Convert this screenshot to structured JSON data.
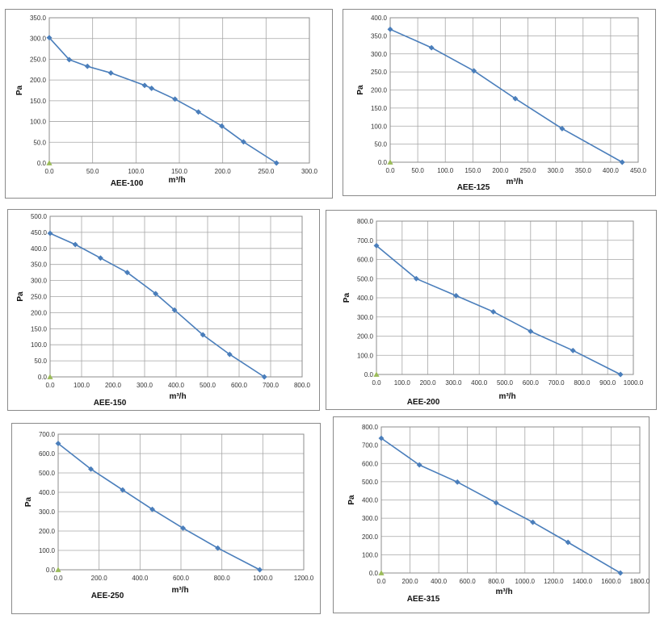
{
  "colors": {
    "series": "#4a7ebb",
    "origin_marker": "#9bbb59",
    "grid": "#a6a6a6",
    "plot_border": "#8c8c8c"
  },
  "chart_data": [
    {
      "type": "line",
      "model": "AEE-100",
      "xlabel": "m³/h",
      "ylabel": "Pa",
      "xlim": [
        0,
        300
      ],
      "ylim": [
        0,
        350
      ],
      "xstep": 50,
      "ystep": 50,
      "xticks": [
        "0.0",
        "50.0",
        "100.0",
        "150.0",
        "200.0",
        "250.0",
        "300.0"
      ],
      "yticks": [
        "0.0",
        "50.0",
        "100.0",
        "150.0",
        "200.0",
        "250.0",
        "300.0",
        "350.0"
      ],
      "grid": true,
      "x": [
        0,
        23,
        44,
        71,
        110,
        118,
        145,
        172,
        199,
        224,
        262
      ],
      "y": [
        302,
        249,
        233,
        217,
        187,
        180,
        154,
        123,
        89,
        51,
        0
      ],
      "marker_x": 0,
      "marker_y": 0
    },
    {
      "type": "line",
      "model": "AEE-125",
      "xlabel": "m³/h",
      "ylabel": "Pa",
      "xlim": [
        0,
        450
      ],
      "ylim": [
        0,
        400
      ],
      "xstep": 50,
      "ystep": 50,
      "xticks": [
        "0.0",
        "50.0",
        "100.0",
        "150.0",
        "200.0",
        "250.0",
        "300.0",
        "350.0",
        "400.0",
        "450.0"
      ],
      "yticks": [
        "0.0",
        "50.0",
        "100.0",
        "150.0",
        "200.0",
        "250.0",
        "300.0",
        "350.0",
        "400.0"
      ],
      "grid": true,
      "x": [
        0,
        75,
        152,
        227,
        312,
        421
      ],
      "y": [
        368,
        317,
        253,
        176,
        93,
        0
      ],
      "marker_x": 0,
      "marker_y": 0
    },
    {
      "type": "line",
      "model": "AEE-150",
      "xlabel": "m³/h",
      "ylabel": "Pa",
      "xlim": [
        0,
        800
      ],
      "ylim": [
        0,
        500
      ],
      "xstep": 100,
      "ystep": 50,
      "xticks": [
        "0.0",
        "100.0",
        "200.0",
        "300.0",
        "400.0",
        "500.0",
        "600.0",
        "700.0",
        "800.0"
      ],
      "yticks": [
        "0.0",
        "50.0",
        "100.0",
        "150.0",
        "200.0",
        "250.0",
        "300.0",
        "350.0",
        "400.0",
        "450.0",
        "500.0"
      ],
      "grid": true,
      "x": [
        0,
        80,
        160,
        245,
        335,
        395,
        485,
        570,
        680
      ],
      "y": [
        447,
        412,
        370,
        325,
        259,
        208,
        131,
        70,
        0
      ],
      "marker_x": 0,
      "marker_y": 0
    },
    {
      "type": "line",
      "model": "AEE-200",
      "xlabel": "m³/h",
      "ylabel": "Pa",
      "xlim": [
        0,
        1000
      ],
      "ylim": [
        0,
        800
      ],
      "xstep": 100,
      "ystep": 100,
      "xticks": [
        "0.0",
        "100.0",
        "200.0",
        "300.0",
        "400.0",
        "500.0",
        "600.0",
        "700.0",
        "800.0",
        "900.0",
        "1000.0"
      ],
      "yticks": [
        "0.0",
        "100.0",
        "200.0",
        "300.0",
        "400.0",
        "500.0",
        "600.0",
        "700.0",
        "800.0"
      ],
      "grid": true,
      "x": [
        0,
        155,
        310,
        455,
        600,
        765,
        950
      ],
      "y": [
        672,
        500,
        411,
        327,
        225,
        125,
        0
      ],
      "marker_x": 0,
      "marker_y": 0
    },
    {
      "type": "line",
      "model": "AEE-250",
      "xlabel": "m³/h",
      "ylabel": "Pa",
      "xlim": [
        0,
        1200
      ],
      "ylim": [
        0,
        700
      ],
      "xstep": 200,
      "ystep": 100,
      "xticks": [
        "0.0",
        "200.0",
        "400.0",
        "600.0",
        "800.0",
        "1000.0",
        "1200.0"
      ],
      "yticks": [
        "0.0",
        "100.0",
        "200.0",
        "300.0",
        "400.0",
        "500.0",
        "600.0",
        "700.0"
      ],
      "grid": true,
      "x": [
        0,
        160,
        315,
        460,
        610,
        780,
        985
      ],
      "y": [
        652,
        520,
        412,
        312,
        215,
        112,
        0
      ],
      "marker_x": 0,
      "marker_y": 0
    },
    {
      "type": "line",
      "model": "AEE-315",
      "xlabel": "m³/h",
      "ylabel": "Pa",
      "xlim": [
        0,
        1800
      ],
      "ylim": [
        0,
        800
      ],
      "xstep": 200,
      "ystep": 100,
      "xticks": [
        "0.0",
        "200.0",
        "400.0",
        "600.0",
        "800.0",
        "1000.0",
        "1200.0",
        "1400.0",
        "1600.0",
        "1800.0"
      ],
      "yticks": [
        "0.0",
        "100.0",
        "200.0",
        "300.0",
        "400.0",
        "500.0",
        "600.0",
        "700.0",
        "800.0"
      ],
      "grid": true,
      "x": [
        0,
        265,
        530,
        800,
        1055,
        1300,
        1665
      ],
      "y": [
        738,
        592,
        498,
        384,
        278,
        168,
        0
      ],
      "marker_x": 0,
      "marker_y": 0
    }
  ]
}
